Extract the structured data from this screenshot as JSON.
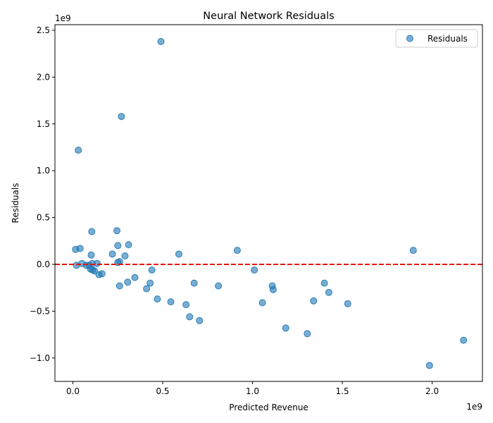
{
  "chart_data": {
    "type": "scatter",
    "title": "Neural Network Residuals",
    "xlabel": "Predicted Revenue",
    "ylabel": "Residuals",
    "x_offset_text": "1e9",
    "y_offset_text": "1e9",
    "xlim": [
      -0.1,
      2.28
    ],
    "ylim": [
      -1.25,
      2.56
    ],
    "x_ticks": [
      0.0,
      0.5,
      1.0,
      1.5,
      2.0
    ],
    "x_tick_labels": [
      "0.0",
      "0.5",
      "1.0",
      "1.5",
      "2.0"
    ],
    "y_ticks": [
      -1.0,
      -0.5,
      0.0,
      0.5,
      1.0,
      1.5,
      2.0,
      2.5
    ],
    "y_tick_labels": [
      "−1.0",
      "−0.5",
      "0.0",
      "0.5",
      "1.0",
      "1.5",
      "2.0",
      "2.5"
    ],
    "grid": false,
    "legend_position": "top-right",
    "reference_line": {
      "y": 0,
      "style": "dashed",
      "color": "#e8120c"
    },
    "series": [
      {
        "name": "Residuals",
        "color": "#1f77b4",
        "points": [
          {
            "x": 0.015,
            "y": 0.16
          },
          {
            "x": 0.02,
            "y": -0.01
          },
          {
            "x": 0.03,
            "y": 1.22
          },
          {
            "x": 0.04,
            "y": 0.17
          },
          {
            "x": 0.05,
            "y": 0.01
          },
          {
            "x": 0.075,
            "y": -0.01
          },
          {
            "x": 0.09,
            "y": -0.01
          },
          {
            "x": 0.098,
            "y": -0.05
          },
          {
            "x": 0.102,
            "y": 0.1
          },
          {
            "x": 0.105,
            "y": 0.35
          },
          {
            "x": 0.108,
            "y": 0.01
          },
          {
            "x": 0.11,
            "y": -0.06
          },
          {
            "x": 0.12,
            "y": -0.07
          },
          {
            "x": 0.135,
            "y": 0.01
          },
          {
            "x": 0.145,
            "y": -0.11
          },
          {
            "x": 0.162,
            "y": -0.1
          },
          {
            "x": 0.22,
            "y": 0.11
          },
          {
            "x": 0.245,
            "y": 0.36
          },
          {
            "x": 0.25,
            "y": 0.02
          },
          {
            "x": 0.25,
            "y": 0.2
          },
          {
            "x": 0.26,
            "y": 0.03
          },
          {
            "x": 0.26,
            "y": -0.23
          },
          {
            "x": 0.27,
            "y": 1.58
          },
          {
            "x": 0.29,
            "y": 0.09
          },
          {
            "x": 0.305,
            "y": -0.19
          },
          {
            "x": 0.31,
            "y": 0.21
          },
          {
            "x": 0.345,
            "y": -0.14
          },
          {
            "x": 0.41,
            "y": -0.26
          },
          {
            "x": 0.43,
            "y": -0.2
          },
          {
            "x": 0.44,
            "y": -0.06
          },
          {
            "x": 0.47,
            "y": -0.37
          },
          {
            "x": 0.49,
            "y": 2.38
          },
          {
            "x": 0.545,
            "y": -0.4
          },
          {
            "x": 0.59,
            "y": 0.11
          },
          {
            "x": 0.63,
            "y": -0.43
          },
          {
            "x": 0.65,
            "y": -0.56
          },
          {
            "x": 0.675,
            "y": -0.2
          },
          {
            "x": 0.705,
            "y": -0.6
          },
          {
            "x": 0.81,
            "y": -0.23
          },
          {
            "x": 0.915,
            "y": 0.15
          },
          {
            "x": 1.01,
            "y": -0.06
          },
          {
            "x": 1.055,
            "y": -0.41
          },
          {
            "x": 1.11,
            "y": -0.23
          },
          {
            "x": 1.115,
            "y": -0.27
          },
          {
            "x": 1.185,
            "y": -0.68
          },
          {
            "x": 1.305,
            "y": -0.74
          },
          {
            "x": 1.34,
            "y": -0.39
          },
          {
            "x": 1.4,
            "y": -0.2
          },
          {
            "x": 1.425,
            "y": -0.3
          },
          {
            "x": 1.53,
            "y": -0.42
          },
          {
            "x": 1.895,
            "y": 0.15
          },
          {
            "x": 1.985,
            "y": -1.08
          },
          {
            "x": 2.175,
            "y": -0.81
          }
        ]
      }
    ]
  }
}
